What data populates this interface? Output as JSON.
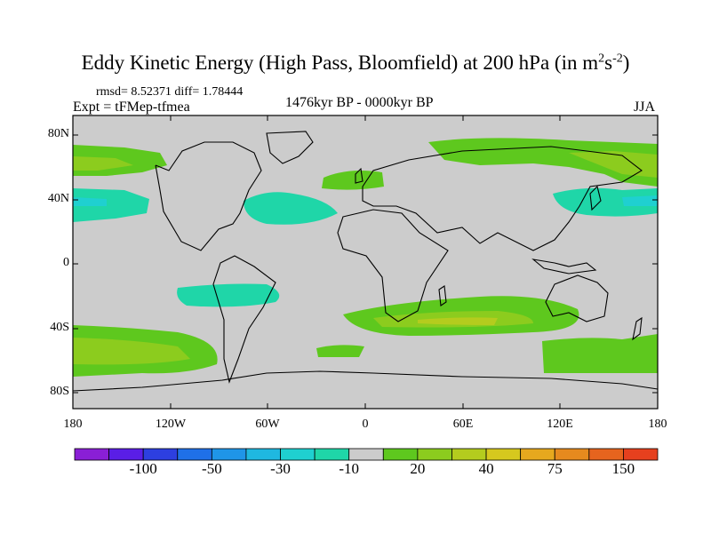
{
  "title": {
    "main": "Eddy Kinetic Energy (High Pass, Bloomfield) at 200 hPa (in m",
    "sup1": "2",
    "mid": "s",
    "sup2": "-2",
    "end": ")"
  },
  "stats": "rmsd= 8.52371 diff= 1.78444",
  "expt": "Expt = tFMep-tfmea",
  "period": "1476kyr BP - 0000kyr BP",
  "season": "JJA",
  "lat_labels": [
    "80N",
    "40N",
    "0",
    "40S",
    "80S"
  ],
  "lon_labels": [
    "180",
    "120W",
    "60W",
    "0",
    "60E",
    "120E",
    "180"
  ],
  "colorbar": {
    "colors": [
      "#8a1fd6",
      "#5a1ee6",
      "#2d3fe0",
      "#1f70e8",
      "#1f95e8",
      "#1fb8e0",
      "#1fd0d0",
      "#1fd6a8",
      "#cccccc",
      "#5ec81e",
      "#8ccc1e",
      "#b4cc1e",
      "#d6c81e",
      "#e6a81e",
      "#e68a1e",
      "#e6641e",
      "#e6401e"
    ],
    "labels": [
      "-100",
      "-50",
      "-30",
      "-10",
      "20",
      "40",
      "75",
      "150"
    ]
  }
}
